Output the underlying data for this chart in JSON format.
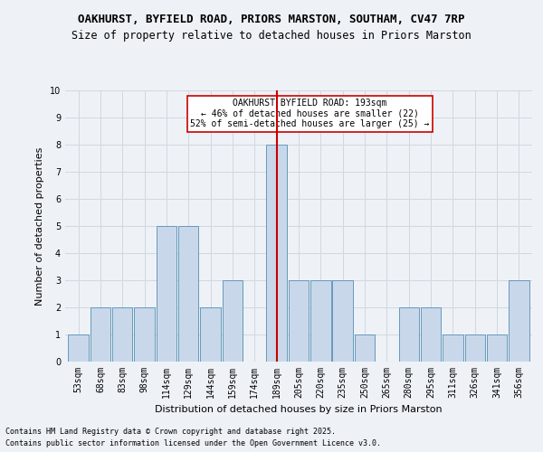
{
  "title1": "OAKHURST, BYFIELD ROAD, PRIORS MARSTON, SOUTHAM, CV47 7RP",
  "title2": "Size of property relative to detached houses in Priors Marston",
  "xlabel": "Distribution of detached houses by size in Priors Marston",
  "ylabel": "Number of detached properties",
  "categories": [
    "53sqm",
    "68sqm",
    "83sqm",
    "98sqm",
    "114sqm",
    "129sqm",
    "144sqm",
    "159sqm",
    "174sqm",
    "189sqm",
    "205sqm",
    "220sqm",
    "235sqm",
    "250sqm",
    "265sqm",
    "280sqm",
    "295sqm",
    "311sqm",
    "326sqm",
    "341sqm",
    "356sqm"
  ],
  "values": [
    1,
    2,
    2,
    2,
    5,
    5,
    2,
    3,
    0,
    8,
    3,
    3,
    3,
    1,
    0,
    2,
    2,
    1,
    1,
    1,
    3
  ],
  "bar_color": "#c8d8ea",
  "bar_edge_color": "#6699bb",
  "highlight_index": 9,
  "highlight_line_color": "#cc0000",
  "annotation_text": "OAKHURST BYFIELD ROAD: 193sqm\n← 46% of detached houses are smaller (22)\n52% of semi-detached houses are larger (25) →",
  "annotation_box_color": "#ffffff",
  "annotation_box_edge": "#cc0000",
  "ylim": [
    0,
    10
  ],
  "yticks": [
    0,
    1,
    2,
    3,
    4,
    5,
    6,
    7,
    8,
    9,
    10
  ],
  "grid_color": "#d0d8e0",
  "background_color": "#eef2f7",
  "footer1": "Contains HM Land Registry data © Crown copyright and database right 2025.",
  "footer2": "Contains public sector information licensed under the Open Government Licence v3.0.",
  "title_fontsize": 9,
  "subtitle_fontsize": 8.5,
  "tick_fontsize": 7,
  "label_fontsize": 8,
  "footer_fontsize": 6,
  "annot_fontsize": 7
}
